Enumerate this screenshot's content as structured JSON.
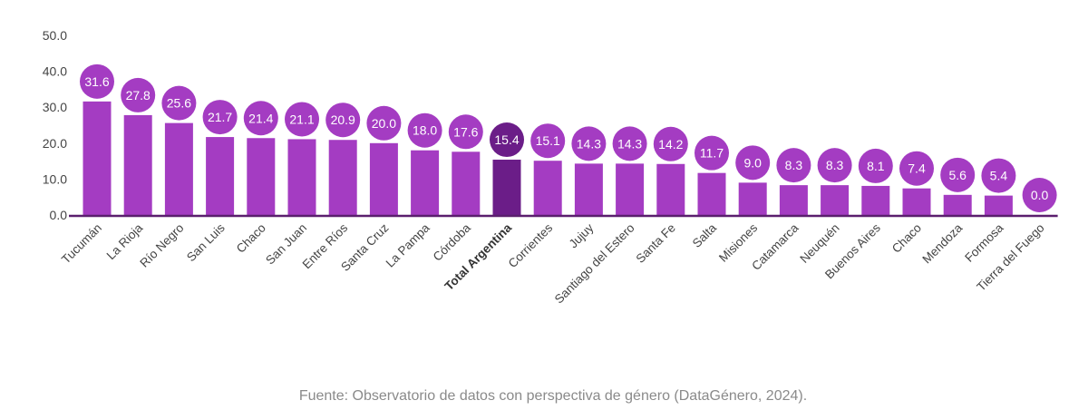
{
  "chart_data": {
    "type": "bar",
    "categories": [
      "Tucumán",
      "La Rioja",
      "Río Negro",
      "San Luis",
      "Chaco",
      "San Juan",
      "Entre Ríos",
      "Santa Cruz",
      "La Pampa",
      "Córdoba",
      "Total Argentina",
      "Corrientes",
      "Jujuy",
      "Santiago del Estero",
      "Santa Fe",
      "Salta",
      "Misiones",
      "Catamarca",
      "Neuquén",
      "Buenos Aires",
      "Chaco",
      "Mendoza",
      "Formosa",
      "Tierra del Fuego"
    ],
    "values": [
      31.6,
      27.8,
      25.6,
      21.7,
      21.4,
      21.1,
      20.9,
      20.0,
      18.0,
      17.6,
      15.4,
      15.1,
      14.3,
      14.3,
      14.2,
      11.7,
      9.0,
      8.3,
      8.3,
      8.1,
      7.4,
      5.6,
      5.4,
      0.0
    ],
    "highlight_category": "Total Argentina",
    "yticks": [
      "0.0",
      "10.0",
      "20.0",
      "30.0",
      "40.0",
      "50.0"
    ],
    "ylim": [
      0,
      50
    ],
    "grid": false,
    "colors": {
      "bar": "#a43cc2",
      "highlight": "#6b1d88",
      "axis": "#5a1f6e"
    }
  },
  "footer": "Fuente: Observatorio de datos con perspectiva de género (DataGénero, 2024)."
}
